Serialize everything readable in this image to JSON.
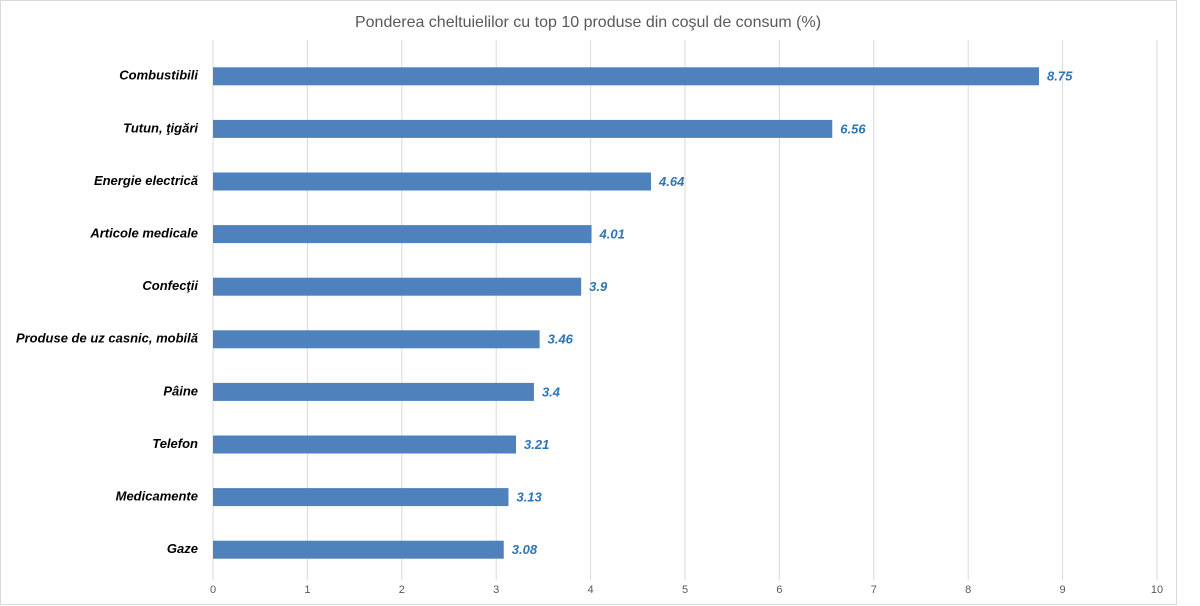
{
  "chart_data": {
    "type": "bar",
    "orientation": "horizontal",
    "title": "Ponderea cheltuielilor cu top 10 produse din coşul de consum (%)",
    "categories": [
      "Combustibili",
      "Tutun, ţigări",
      "Energie electrică",
      "Articole medicale",
      "Confecţii",
      "Produse de uz casnic, mobilă",
      "Pâine",
      "Telefon",
      "Medicamente",
      "Gaze"
    ],
    "values": [
      8.75,
      6.56,
      4.64,
      4.01,
      3.9,
      3.46,
      3.4,
      3.21,
      3.13,
      3.08
    ],
    "color": "#4f81bd",
    "label_color": "#2e75b6",
    "xlim": [
      0,
      10
    ],
    "xticks": [
      0,
      1,
      2,
      3,
      4,
      5,
      6,
      7,
      8,
      9,
      10
    ],
    "grid": true
  }
}
